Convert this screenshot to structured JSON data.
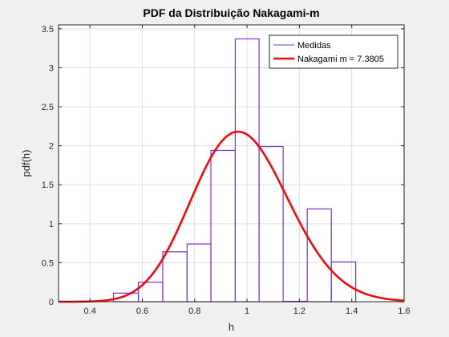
{
  "chart_data": {
    "type": "bar",
    "title": "PDF da Distribuição Nakagami-m",
    "xlabel": "h",
    "ylabel": "pdf(h)",
    "xlim": [
      0.28,
      1.6
    ],
    "ylim": [
      0,
      3.55
    ],
    "xticks": [
      0.4,
      0.6,
      0.8,
      1,
      1.2,
      1.4,
      1.6
    ],
    "xtick_labels": [
      "0.4",
      "0.6",
      "0.8",
      "1",
      "1.2",
      "1.4",
      "1.6"
    ],
    "yticks": [
      0,
      0.5,
      1,
      1.5,
      2,
      2.5,
      3,
      3.5
    ],
    "ytick_labels": [
      "0",
      "0.5",
      "1",
      "1.5",
      "2",
      "2.5",
      "3",
      "3.5"
    ],
    "grid": true,
    "legend_position": "top-right",
    "series": [
      {
        "name": "Medidas",
        "kind": "histogram",
        "color": "#7e2fd8",
        "bins": [
          {
            "x0": 0.49,
            "x1": 0.585,
            "value": 0.11
          },
          {
            "x0": 0.585,
            "x1": 0.678,
            "value": 0.25
          },
          {
            "x0": 0.678,
            "x1": 0.771,
            "value": 0.64
          },
          {
            "x0": 0.771,
            "x1": 0.862,
            "value": 0.74
          },
          {
            "x0": 0.862,
            "x1": 0.955,
            "value": 1.94
          },
          {
            "x0": 0.955,
            "x1": 1.046,
            "value": 3.37
          },
          {
            "x0": 1.046,
            "x1": 1.138,
            "value": 1.99
          },
          {
            "x0": 1.138,
            "x1": 1.23,
            "value": 0.005
          },
          {
            "x0": 1.23,
            "x1": 1.322,
            "value": 1.19
          },
          {
            "x0": 1.322,
            "x1": 1.415,
            "value": 0.51
          }
        ]
      },
      {
        "name": "Nakagami m = 7.3805",
        "kind": "line",
        "color": "#ff0000",
        "m": 7.3805,
        "omega": 1.0
      }
    ]
  }
}
